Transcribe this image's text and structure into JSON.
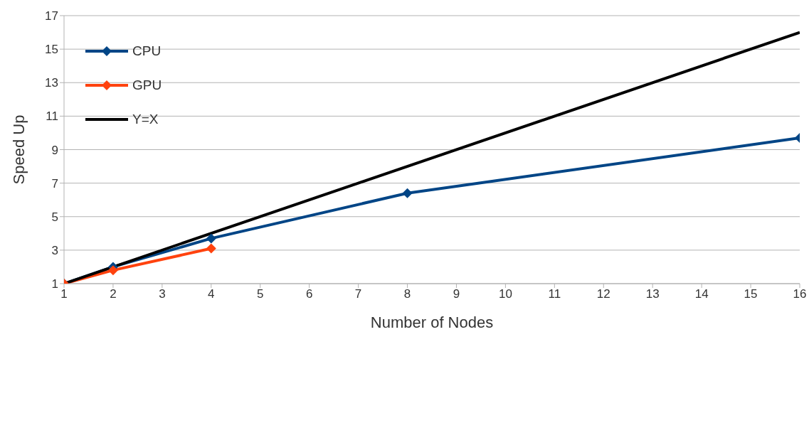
{
  "chart_data": {
    "type": "line",
    "xlabel": "Number of Nodes",
    "ylabel": "Speed Up",
    "xlim": [
      1,
      16
    ],
    "xticks": [
      1,
      2,
      3,
      4,
      5,
      6,
      7,
      8,
      9,
      10,
      11,
      12,
      13,
      14,
      15,
      16
    ],
    "ylim": [
      1,
      17
    ],
    "yticks": [
      1,
      3,
      5,
      7,
      9,
      11,
      13,
      15,
      17
    ],
    "grid": "y",
    "legend": "top left",
    "series": [
      {
        "name": "CPU",
        "color": "#004586",
        "marker": "diamond",
        "x": [
          1,
          2,
          4,
          8,
          16
        ],
        "values": [
          1,
          2.0,
          3.7,
          6.4,
          9.7
        ]
      },
      {
        "name": "GPU",
        "color": "#ff420e",
        "marker": "diamond",
        "x": [
          1,
          2,
          4
        ],
        "values": [
          1,
          1.8,
          3.1
        ]
      },
      {
        "name": "Y=X",
        "color": "#000000",
        "marker": "none",
        "x": [
          1,
          16
        ],
        "values": [
          1,
          16
        ]
      }
    ]
  }
}
